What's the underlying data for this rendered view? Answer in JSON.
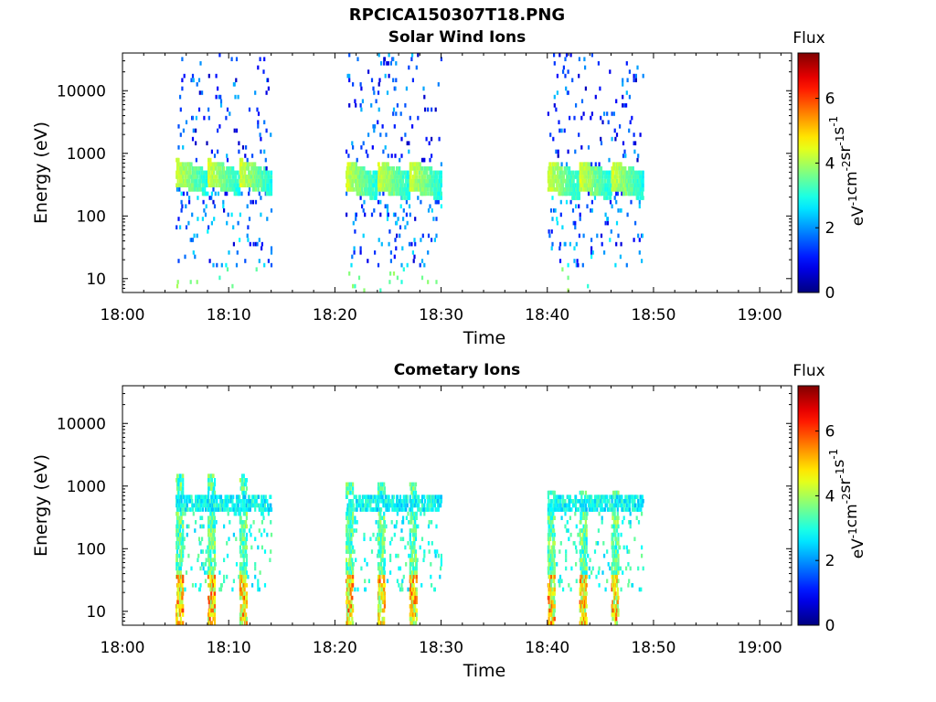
{
  "figure": {
    "title": "RPCICA150307T18.PNG"
  },
  "chart_data": [
    {
      "type": "heatmap",
      "title": "Solar Wind Ions",
      "xlabel": "Time",
      "ylabel": "Energy (eV)",
      "xlim": [
        "18:00",
        "19:03"
      ],
      "ylim": [
        6,
        40000
      ],
      "y_scale": "log",
      "x_ticks": [
        "18:00",
        "18:10",
        "18:20",
        "18:30",
        "18:40",
        "18:50",
        "19:00"
      ],
      "y_ticks": [
        10,
        100,
        1000,
        10000
      ],
      "y_tick_labels": [
        "10",
        "100",
        "1000",
        "10000"
      ],
      "colorbar": {
        "title": "Flux",
        "label": "eV-1cm-2sr-1s-1",
        "label_parts": [
          [
            "eV",
            "-1"
          ],
          [
            "cm",
            "-2"
          ],
          [
            "sr",
            "-1"
          ],
          [
            "s",
            "-1"
          ]
        ],
        "range": [
          0,
          7.4
        ],
        "ticks": [
          0,
          2,
          4,
          6
        ],
        "colormap": "jet"
      },
      "intervals": [
        {
          "start": "18:05",
          "end": "18:14",
          "band_low": 300,
          "band_high": 800
        },
        {
          "start": "18:21",
          "end": "18:30",
          "band_low": 250,
          "band_high": 750
        },
        {
          "start": "18:40",
          "end": "18:49",
          "band_low": 250,
          "band_high": 750
        }
      ]
    },
    {
      "type": "heatmap",
      "title": "Cometary Ions",
      "xlabel": "Time",
      "ylabel": "Energy (eV)",
      "xlim": [
        "18:00",
        "19:03"
      ],
      "ylim": [
        6,
        40000
      ],
      "y_scale": "log",
      "x_ticks": [
        "18:00",
        "18:10",
        "18:20",
        "18:30",
        "18:40",
        "18:50",
        "19:00"
      ],
      "y_ticks": [
        10,
        100,
        1000,
        10000
      ],
      "y_tick_labels": [
        "10",
        "100",
        "1000",
        "10000"
      ],
      "colorbar": {
        "title": "Flux",
        "label": "eV-1cm-2sr-1s-1",
        "label_parts": [
          [
            "eV",
            "-1"
          ],
          [
            "cm",
            "-2"
          ],
          [
            "sr",
            "-1"
          ],
          [
            "s",
            "-1"
          ]
        ],
        "range": [
          0,
          7.4
        ],
        "ticks": [
          0,
          2,
          4,
          6
        ],
        "colormap": "jet"
      },
      "intervals": [
        {
          "start": "18:05",
          "end": "18:14",
          "band_low": 8,
          "band_high": 1500
        },
        {
          "start": "18:21",
          "end": "18:30",
          "band_low": 8,
          "band_high": 1200
        },
        {
          "start": "18:40",
          "end": "18:49",
          "band_low": 8,
          "band_high": 900
        }
      ]
    }
  ]
}
